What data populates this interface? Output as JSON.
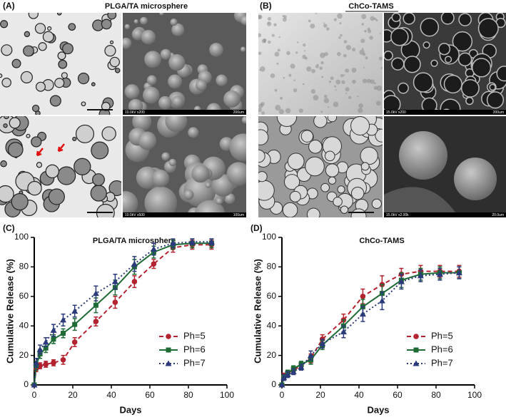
{
  "image_panels": [
    {
      "label": "(A)",
      "title": "PLGA/TA microsphere",
      "scale_texts": [
        "10.0kV x200",
        "200um",
        "10.0kV x500",
        "100um"
      ]
    },
    {
      "label": "(B)",
      "title": "ChCo-TAMS",
      "scale_texts": [
        "15.0kV x200",
        "200um",
        "15.0kV x2.00k",
        "20.0um"
      ]
    }
  ],
  "chart_data": [
    {
      "type": "line",
      "panel": "(C)",
      "title": "PLGA/TA microsphere",
      "xlabel": "Days",
      "ylabel": "Cumulative Release (%)",
      "x": [
        0,
        1,
        3,
        6,
        10,
        15,
        21,
        32,
        42,
        52,
        62,
        72,
        82,
        92
      ],
      "xlim": [
        0,
        100
      ],
      "xticks": [
        0,
        20,
        40,
        60,
        80,
        100
      ],
      "ylim": [
        0,
        100
      ],
      "yticks": [
        0,
        20,
        40,
        60,
        80,
        100
      ],
      "legend": "lower right",
      "series": [
        {
          "name": "Ph=5",
          "color": "#b3222f",
          "marker": "circle",
          "linestyle": "dashed",
          "values": [
            0,
            11,
            13,
            14,
            15,
            17,
            29,
            43,
            56,
            70,
            82,
            93,
            95,
            95
          ],
          "errors": [
            0,
            2,
            2,
            2,
            2,
            3,
            3,
            3,
            4,
            4,
            3,
            3,
            3,
            3
          ]
        },
        {
          "name": "Ph=6",
          "color": "#1f6b36",
          "marker": "square",
          "linestyle": "solid",
          "values": [
            0,
            13,
            21,
            25,
            31,
            35,
            41,
            54,
            66,
            80,
            90,
            95,
            96,
            96
          ],
          "errors": [
            0,
            3,
            3,
            3,
            3,
            3,
            4,
            5,
            5,
            5,
            4,
            3,
            3,
            3
          ]
        },
        {
          "name": "Ph=7",
          "color": "#2b3a7a",
          "marker": "triangle",
          "linestyle": "dotted",
          "values": [
            0,
            15,
            24,
            29,
            37,
            44,
            50,
            62,
            70,
            82,
            92,
            96,
            97,
            97
          ],
          "errors": [
            0,
            3,
            3,
            3,
            4,
            4,
            4,
            5,
            5,
            5,
            4,
            3,
            2,
            2
          ]
        }
      ]
    },
    {
      "type": "line",
      "panel": "(D)",
      "title": "ChCo-TAMS",
      "xlabel": "Days",
      "ylabel": "Cumulative Release (%)",
      "x": [
        0,
        1,
        3,
        6,
        10,
        15,
        21,
        32,
        42,
        52,
        62,
        72,
        82,
        92
      ],
      "xlim": [
        0,
        100
      ],
      "xticks": [
        0,
        20,
        40,
        60,
        80,
        100
      ],
      "ylim": [
        0,
        100
      ],
      "yticks": [
        0,
        20,
        40,
        60,
        80,
        100
      ],
      "legend": "lower right",
      "series": [
        {
          "name": "Ph=5",
          "color": "#b3222f",
          "marker": "circle",
          "linestyle": "dashed",
          "values": [
            0,
            6,
            8,
            10,
            13,
            18,
            31,
            44,
            60,
            68,
            75,
            77,
            77,
            77
          ],
          "errors": [
            0,
            2,
            2,
            2,
            2,
            3,
            3,
            4,
            5,
            6,
            4,
            4,
            4,
            4
          ]
        },
        {
          "name": "Ph=6",
          "color": "#1f6b36",
          "marker": "square",
          "linestyle": "solid",
          "values": [
            0,
            5,
            8,
            11,
            14,
            17,
            27,
            40,
            53,
            62,
            71,
            75,
            76,
            76
          ],
          "errors": [
            0,
            2,
            2,
            2,
            2,
            3,
            3,
            4,
            5,
            6,
            5,
            4,
            4,
            4
          ]
        },
        {
          "name": "Ph=7",
          "color": "#2b3a7a",
          "marker": "triangle",
          "linestyle": "dotted",
          "values": [
            0,
            5,
            7,
            9,
            12,
            20,
            28,
            36,
            48,
            57,
            70,
            74,
            75,
            76
          ],
          "errors": [
            0,
            2,
            2,
            2,
            2,
            3,
            3,
            4,
            5,
            6,
            5,
            4,
            4,
            4
          ]
        }
      ]
    }
  ]
}
